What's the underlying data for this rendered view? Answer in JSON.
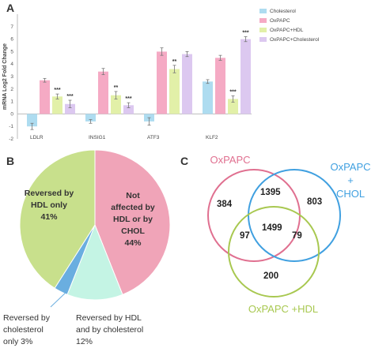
{
  "panels": {
    "a": "A",
    "b": "B",
    "c": "C"
  },
  "chart_data": [
    {
      "type": "bar",
      "ylabel": "mRNA Log2 Fold Change",
      "ylim": [
        -2,
        8
      ],
      "yticks": [
        -2,
        -1,
        0,
        1,
        2,
        3,
        4,
        5,
        6,
        7
      ],
      "grid": false,
      "legend_position": "top-right",
      "categories": [
        "LDLR",
        "INSIG1",
        "ATF3",
        "KLF2"
      ],
      "series": [
        {
          "name": "Cholesterol",
          "color": "#aedcf0",
          "values": [
            -1.0,
            -0.6,
            -0.6,
            2.6
          ]
        },
        {
          "name": "OxPAPC",
          "color": "#f5aac4",
          "values": [
            2.7,
            3.4,
            5.0,
            4.5
          ]
        },
        {
          "name": "OxPAPC+HDL",
          "color": "#e2f0a8",
          "values": [
            1.4,
            1.5,
            3.6,
            1.2
          ]
        },
        {
          "name": "OxPAPC+Cholesterol",
          "color": "#dcc8f0",
          "values": [
            0.8,
            0.7,
            4.8,
            6.0
          ]
        }
      ],
      "errors": [
        [
          0.25,
          0.15,
          0.2,
          0.3
        ],
        [
          0.15,
          0.25,
          0.3,
          0.2
        ],
        [
          0.3,
          0.3,
          0.3,
          0.2
        ],
        [
          0.15,
          0.2,
          0.25,
          0.2
        ]
      ],
      "significance": [
        [
          "",
          "***",
          "***",
          ""
        ],
        [
          "",
          "**",
          "***",
          ""
        ],
        [
          "",
          "**",
          "",
          ""
        ],
        [
          "",
          "***",
          "***",
          ""
        ]
      ],
      "series_significance": [
        {
          "series": 2,
          "labels": [
            "***",
            "**",
            "**",
            "***"
          ]
        },
        {
          "series": 3,
          "labels": [
            "***",
            "***",
            "",
            "***"
          ]
        }
      ]
    },
    {
      "type": "pie",
      "slices": [
        {
          "label": "Not\naffected by\nHDL or by\nCHOL\n44%",
          "value": 44,
          "color": "#f0a4b8"
        },
        {
          "label": "Reversed by HDL\nand by cholesterol\n12%",
          "value": 12,
          "color": "#c4f4e4"
        },
        {
          "label": "Reversed by\ncholesterol\nonly 3%",
          "value": 3,
          "color": "#6aaee0"
        },
        {
          "label": "Reversed by\nHDL only\n41%",
          "value": 41,
          "color": "#c8e08c"
        }
      ]
    },
    {
      "type": "venn",
      "sets": [
        {
          "name": "OxPAPC",
          "color": "#e07090"
        },
        {
          "name": "OxPAPC\n+\nCHOL",
          "color": "#40a0e0"
        },
        {
          "name": "OxPAPC +HDL",
          "color": "#a8c850"
        }
      ],
      "regions": {
        "oxpapc_only": "384",
        "oxpapc_chol": "1395",
        "chol_only": "803",
        "oxpapc_hdl": "97",
        "all_three": "1499",
        "chol_hdl": "79",
        "hdl_only": "200"
      }
    }
  ]
}
